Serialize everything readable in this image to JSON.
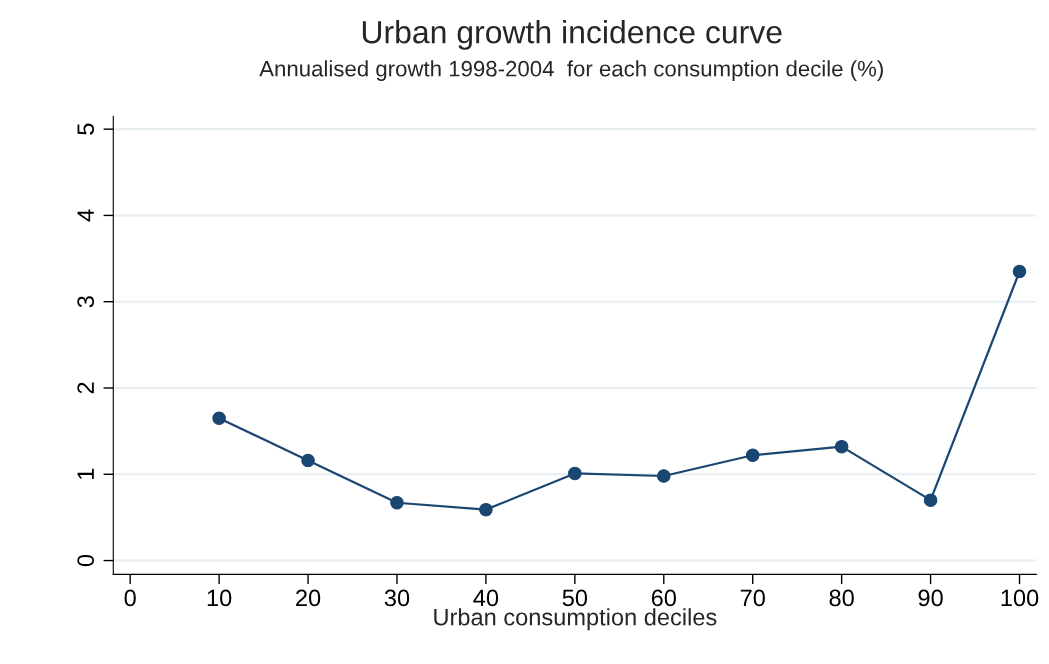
{
  "chart_data": {
    "type": "line",
    "title": "Urban growth incidence curve",
    "subtitle": "Annualised growth 1998-2004  for each consumption decile (%)",
    "xlabel": "Urban consumption deciles",
    "x": [
      10,
      20,
      30,
      40,
      50,
      60,
      70,
      80,
      90,
      100
    ],
    "series": [
      {
        "color": "#1a4672",
        "values": [
          1.65,
          1.16,
          0.67,
          0.59,
          1.01,
          0.98,
          1.22,
          1.32,
          0.7,
          3.35
        ]
      }
    ],
    "xlim": [
      -1.9,
      101.9
    ],
    "ylim": [
      -0.16,
      5.15
    ],
    "xticks": [
      0,
      10,
      20,
      30,
      40,
      50,
      60,
      70,
      80,
      90,
      100
    ],
    "yticks": [
      0,
      1,
      2,
      3,
      4,
      5
    ],
    "grid": "y",
    "marker": "circle",
    "line_style": "solid"
  }
}
